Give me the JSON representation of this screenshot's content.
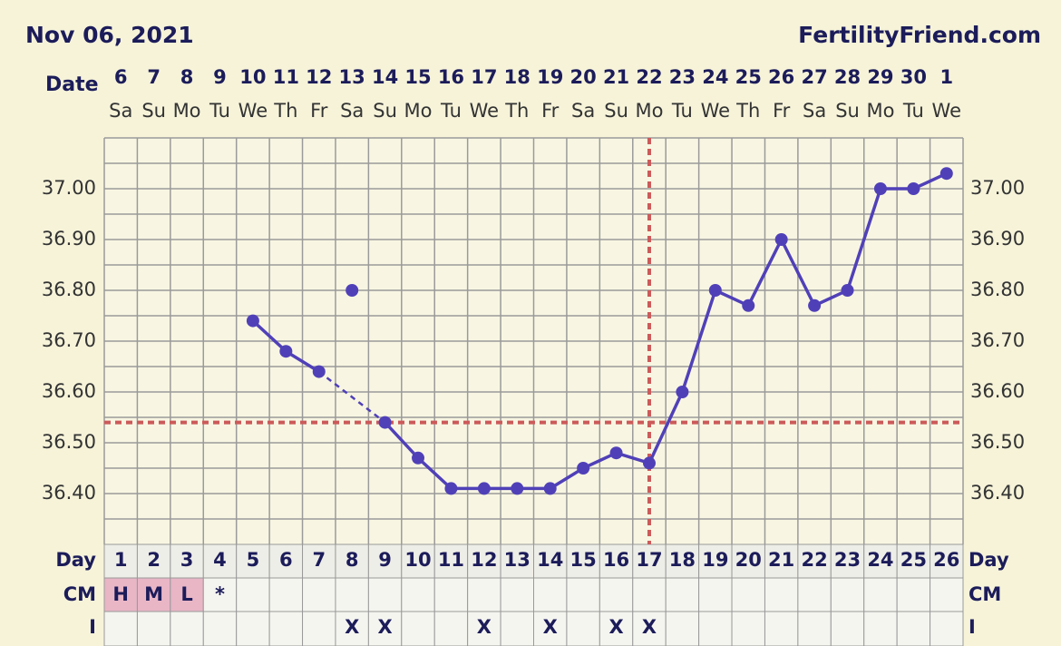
{
  "chart_data": {
    "type": "line",
    "title": "Nov 06, 2021",
    "brand": "FertilityFriend.com",
    "date_label": "Date",
    "categories": [
      6,
      7,
      8,
      9,
      10,
      11,
      12,
      13,
      14,
      15,
      16,
      17,
      18,
      19,
      20,
      21,
      22,
      23,
      24,
      25,
      26,
      27,
      28,
      29,
      30,
      1
    ],
    "weekdays": [
      "Sa",
      "Su",
      "Mo",
      "Tu",
      "We",
      "Th",
      "Fr",
      "Sa",
      "Su",
      "Mo",
      "Tu",
      "We",
      "Th",
      "Fr",
      "Sa",
      "Su",
      "Mo",
      "Tu",
      "We",
      "Th",
      "Fr",
      "Sa",
      "Su",
      "Mo",
      "Tu",
      "We"
    ],
    "series": [
      {
        "color": "#5040b8",
        "values": [
          null,
          null,
          null,
          null,
          36.74,
          36.68,
          36.64,
          null,
          36.54,
          36.47,
          36.41,
          36.41,
          36.41,
          36.41,
          36.45,
          36.48,
          36.46,
          36.6,
          36.8,
          36.77,
          36.9,
          36.77,
          36.8,
          37.0,
          37.0,
          37.03
        ]
      },
      {
        "color": "#5040b8",
        "values": [
          null,
          null,
          null,
          null,
          null,
          null,
          null,
          36.8,
          null,
          null,
          null,
          null,
          null,
          null,
          null,
          null,
          null,
          null,
          null,
          null,
          null,
          null,
          null,
          null,
          null,
          null
        ]
      }
    ],
    "ylim": [
      36.3,
      37.1
    ],
    "yticks": [
      {
        "value": 36.4,
        "label": "36.40"
      },
      {
        "value": 36.5,
        "label": "36.50"
      },
      {
        "value": 36.6,
        "label": "36.60"
      },
      {
        "value": 36.7,
        "label": "36.70"
      },
      {
        "value": 36.8,
        "label": "36.80"
      },
      {
        "value": 36.9,
        "label": "36.90"
      },
      {
        "value": 37.0,
        "label": "37.00"
      }
    ],
    "ygrid": [
      36.35,
      36.45,
      36.55,
      36.65,
      36.75,
      36.85,
      36.95,
      37.05
    ],
    "coverline": 36.54,
    "coverline_color": "#cc5a5a",
    "ovulation_day": 17,
    "day_label": "Day",
    "cycle_days": [
      1,
      2,
      3,
      4,
      5,
      6,
      7,
      8,
      9,
      10,
      11,
      12,
      13,
      14,
      15,
      16,
      17,
      18,
      19,
      20,
      21,
      22,
      23,
      24,
      25,
      26
    ],
    "cm_label": "CM",
    "cm": [
      "H",
      "M",
      "L",
      "*",
      null,
      null,
      null,
      null,
      null,
      null,
      null,
      null,
      null,
      null,
      null,
      null,
      null,
      null,
      null,
      null,
      null,
      null,
      null,
      null,
      null,
      null
    ],
    "i_label": "I",
    "intercourse": [
      null,
      null,
      null,
      null,
      null,
      null,
      null,
      "X",
      "X",
      null,
      null,
      "X",
      null,
      "X",
      null,
      "X",
      "X",
      null,
      null,
      null,
      null,
      null,
      null,
      null,
      null,
      null
    ]
  }
}
